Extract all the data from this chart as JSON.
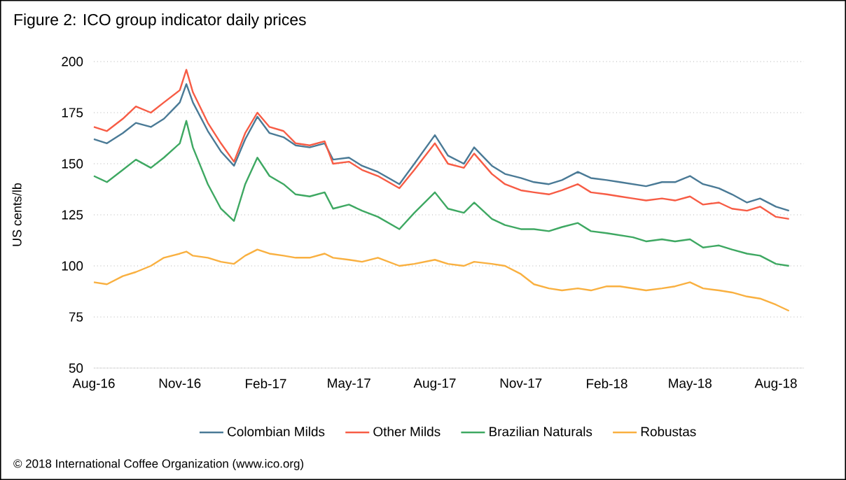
{
  "chart_data": {
    "type": "line",
    "title": "Figure 2: ICO group indicator daily prices",
    "ylabel": "US cents/lb",
    "annotations": [
      "© 2018 International Coffee Organization (www.ico.org)"
    ],
    "x": [
      "2016-08-01",
      "2016-08-15",
      "2016-09-01",
      "2016-09-15",
      "2016-10-01",
      "2016-10-15",
      "2016-11-01",
      "2016-11-08",
      "2016-11-15",
      "2016-12-01",
      "2016-12-15",
      "2016-12-29",
      "2017-01-10",
      "2017-01-23",
      "2017-02-05",
      "2017-02-20",
      "2017-03-05",
      "2017-03-20",
      "2017-04-05",
      "2017-04-14",
      "2017-05-01",
      "2017-05-15",
      "2017-06-01",
      "2017-06-24",
      "2017-07-10",
      "2017-08-01",
      "2017-08-15",
      "2017-09-01",
      "2017-09-12",
      "2017-10-01",
      "2017-10-15",
      "2017-11-01",
      "2017-11-15",
      "2017-12-01",
      "2017-12-15",
      "2018-01-01",
      "2018-01-15",
      "2018-02-01",
      "2018-02-15",
      "2018-03-01",
      "2018-03-15",
      "2018-04-01",
      "2018-04-15",
      "2018-05-01",
      "2018-05-15",
      "2018-06-01",
      "2018-06-15",
      "2018-07-01",
      "2018-07-15",
      "2018-08-01",
      "2018-08-15"
    ],
    "series": [
      {
        "name": "Colombian Milds",
        "color": "#4a7a96",
        "values": [
          162,
          160,
          165,
          170,
          168,
          172,
          180,
          189,
          180,
          166,
          156,
          149,
          162,
          173,
          165,
          163,
          159,
          158,
          160,
          152,
          153,
          149,
          146,
          140,
          150,
          164,
          154,
          150,
          158,
          149,
          145,
          143,
          141,
          140,
          142,
          146,
          143,
          142,
          141,
          140,
          139,
          141,
          141,
          144,
          140,
          138,
          135,
          131,
          133,
          129,
          127
        ]
      },
      {
        "name": "Other Milds",
        "color": "#f75c45",
        "values": [
          168,
          166,
          172,
          178,
          175,
          180,
          186,
          196,
          185,
          170,
          160,
          151,
          165,
          175,
          168,
          166,
          160,
          159,
          161,
          150,
          151,
          147,
          144,
          138,
          147,
          160,
          150,
          148,
          155,
          145,
          140,
          137,
          136,
          135,
          137,
          140,
          136,
          135,
          134,
          133,
          132,
          133,
          132,
          134,
          130,
          131,
          128,
          127,
          129,
          124,
          123
        ]
      },
      {
        "name": "Brazilian Naturals",
        "color": "#3ea862",
        "values": [
          144,
          141,
          147,
          152,
          148,
          153,
          160,
          171,
          158,
          140,
          128,
          122,
          140,
          153,
          144,
          140,
          135,
          134,
          136,
          128,
          130,
          127,
          124,
          118,
          126,
          136,
          128,
          126,
          131,
          123,
          120,
          118,
          118,
          117,
          119,
          121,
          117,
          116,
          115,
          114,
          112,
          113,
          112,
          113,
          109,
          110,
          108,
          106,
          105,
          101,
          100
        ]
      },
      {
        "name": "Robustas",
        "color": "#f9b040",
        "values": [
          92,
          91,
          95,
          97,
          100,
          104,
          106,
          107,
          105,
          104,
          102,
          101,
          105,
          108,
          106,
          105,
          104,
          104,
          106,
          104,
          103,
          102,
          104,
          100,
          101,
          103,
          101,
          100,
          102,
          101,
          100,
          96,
          91,
          89,
          88,
          89,
          88,
          90,
          90,
          89,
          88,
          89,
          90,
          92,
          89,
          88,
          87,
          85,
          84,
          81,
          78
        ]
      }
    ],
    "xlim": [
      "2016-08-01",
      "2018-08-31"
    ],
    "xticks": [
      {
        "value": "2016-08-01",
        "label": "Aug-16"
      },
      {
        "value": "2016-11-01",
        "label": "Nov-16"
      },
      {
        "value": "2017-02-01",
        "label": "Feb-17"
      },
      {
        "value": "2017-05-01",
        "label": "May-17"
      },
      {
        "value": "2017-08-01",
        "label": "Aug-17"
      },
      {
        "value": "2017-11-01",
        "label": "Nov-17"
      },
      {
        "value": "2018-02-01",
        "label": "Feb-18"
      },
      {
        "value": "2018-05-01",
        "label": "May-18"
      },
      {
        "value": "2018-08-01",
        "label": "Aug-18"
      }
    ],
    "ylim": [
      50,
      200
    ],
    "yticks": [
      50,
      75,
      100,
      125,
      150,
      175,
      200
    ],
    "grid": "y",
    "legend": "bottom",
    "marker": "none",
    "line_style": "solid"
  }
}
